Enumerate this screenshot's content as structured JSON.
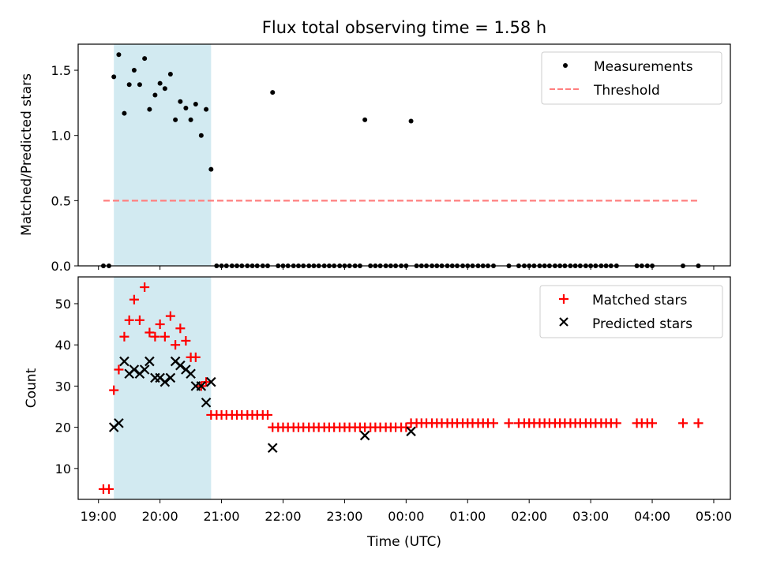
{
  "figure": {
    "title": "Flux total observing time = 1.58 h"
  },
  "colors": {
    "measurement": "#000000",
    "threshold": "#ff7f7f",
    "matched": "#ff0000",
    "predicted": "#000000",
    "highlight": "#add8e6"
  },
  "chart_data": [
    {
      "type": "scatter",
      "ylabel": "Matched/Predicted stars",
      "xlabel": "",
      "x_unit": "hours since 00:00 UTC (values >= 24 are the next day)",
      "xlim": [
        18.67,
        29.27
      ],
      "ylim": [
        0.0,
        1.7
      ],
      "yticks": [
        0.0,
        0.5,
        1.0,
        1.5
      ],
      "ytick_labels": [
        "0.0",
        "0.5",
        "1.0",
        "1.5"
      ],
      "legend_position": "upper right",
      "highlight_span": {
        "from": 19.25,
        "to": 20.83
      },
      "series": [
        {
          "name": "Measurements",
          "marker": "dot",
          "points": [
            [
              19.08,
              0.0
            ],
            [
              19.17,
              0.0
            ],
            [
              19.25,
              1.45
            ],
            [
              19.33,
              1.62
            ],
            [
              19.42,
              1.17
            ],
            [
              19.5,
              1.39
            ],
            [
              19.58,
              1.5
            ],
            [
              19.67,
              1.39
            ],
            [
              19.75,
              1.59
            ],
            [
              19.83,
              1.2
            ],
            [
              19.92,
              1.31
            ],
            [
              20.0,
              1.4
            ],
            [
              20.08,
              1.36
            ],
            [
              20.17,
              1.47
            ],
            [
              20.25,
              1.12
            ],
            [
              20.33,
              1.26
            ],
            [
              20.42,
              1.21
            ],
            [
              20.5,
              1.12
            ],
            [
              20.58,
              1.24
            ],
            [
              20.67,
              1.0
            ],
            [
              20.75,
              1.2
            ],
            [
              20.83,
              0.74
            ],
            [
              20.92,
              0.0
            ],
            [
              21.0,
              0.0
            ],
            [
              21.08,
              0.0
            ],
            [
              21.17,
              0.0
            ],
            [
              21.25,
              0.0
            ],
            [
              21.33,
              0.0
            ],
            [
              21.42,
              0.0
            ],
            [
              21.5,
              0.0
            ],
            [
              21.58,
              0.0
            ],
            [
              21.67,
              0.0
            ],
            [
              21.75,
              0.0
            ],
            [
              21.83,
              1.33
            ],
            [
              21.92,
              0.0
            ],
            [
              22.0,
              0.0
            ],
            [
              22.08,
              0.0
            ],
            [
              22.17,
              0.0
            ],
            [
              22.25,
              0.0
            ],
            [
              22.33,
              0.0
            ],
            [
              22.42,
              0.0
            ],
            [
              22.5,
              0.0
            ],
            [
              22.58,
              0.0
            ],
            [
              22.67,
              0.0
            ],
            [
              22.75,
              0.0
            ],
            [
              22.83,
              0.0
            ],
            [
              22.92,
              0.0
            ],
            [
              23.0,
              0.0
            ],
            [
              23.08,
              0.0
            ],
            [
              23.17,
              0.0
            ],
            [
              23.25,
              0.0
            ],
            [
              23.33,
              1.12
            ],
            [
              23.42,
              0.0
            ],
            [
              23.5,
              0.0
            ],
            [
              23.58,
              0.0
            ],
            [
              23.67,
              0.0
            ],
            [
              23.75,
              0.0
            ],
            [
              23.83,
              0.0
            ],
            [
              23.92,
              0.0
            ],
            [
              24.0,
              0.0
            ],
            [
              24.08,
              1.11
            ],
            [
              24.17,
              0.0
            ],
            [
              24.25,
              0.0
            ],
            [
              24.33,
              0.0
            ],
            [
              24.42,
              0.0
            ],
            [
              24.5,
              0.0
            ],
            [
              24.58,
              0.0
            ],
            [
              24.67,
              0.0
            ],
            [
              24.75,
              0.0
            ],
            [
              24.83,
              0.0
            ],
            [
              24.92,
              0.0
            ],
            [
              25.0,
              0.0
            ],
            [
              25.08,
              0.0
            ],
            [
              25.17,
              0.0
            ],
            [
              25.25,
              0.0
            ],
            [
              25.33,
              0.0
            ],
            [
              25.42,
              0.0
            ],
            [
              25.67,
              0.0
            ],
            [
              25.83,
              0.0
            ],
            [
              25.92,
              0.0
            ],
            [
              26.0,
              0.0
            ],
            [
              26.08,
              0.0
            ],
            [
              26.17,
              0.0
            ],
            [
              26.25,
              0.0
            ],
            [
              26.33,
              0.0
            ],
            [
              26.42,
              0.0
            ],
            [
              26.5,
              0.0
            ],
            [
              26.58,
              0.0
            ],
            [
              26.67,
              0.0
            ],
            [
              26.75,
              0.0
            ],
            [
              26.83,
              0.0
            ],
            [
              26.92,
              0.0
            ],
            [
              27.0,
              0.0
            ],
            [
              27.08,
              0.0
            ],
            [
              27.17,
              0.0
            ],
            [
              27.25,
              0.0
            ],
            [
              27.33,
              0.0
            ],
            [
              27.42,
              0.0
            ],
            [
              27.75,
              0.0
            ],
            [
              27.83,
              0.0
            ],
            [
              27.92,
              0.0
            ],
            [
              28.0,
              0.0
            ],
            [
              28.5,
              0.0
            ],
            [
              28.75,
              0.0
            ]
          ]
        },
        {
          "name": "Threshold",
          "style": "dashed-line",
          "x": [
            19.08,
            28.75
          ],
          "y": [
            0.5,
            0.5
          ]
        }
      ]
    },
    {
      "type": "scatter",
      "ylabel": "Count",
      "xlabel": "Time (UTC)",
      "x_unit": "hours since 00:00 UTC (values >= 24 are the next day)",
      "xlim": [
        18.67,
        29.27
      ],
      "ylim": [
        2.5,
        56.5
      ],
      "yticks": [
        10,
        20,
        30,
        40,
        50
      ],
      "ytick_labels": [
        "10",
        "20",
        "30",
        "40",
        "50"
      ],
      "xticks": [
        19,
        20,
        21,
        22,
        23,
        24,
        25,
        26,
        27,
        28,
        29
      ],
      "xtick_labels": [
        "19:00",
        "20:00",
        "21:00",
        "22:00",
        "23:00",
        "00:00",
        "01:00",
        "02:00",
        "03:00",
        "04:00",
        "05:00"
      ],
      "legend_position": "upper right",
      "highlight_span": {
        "from": 19.25,
        "to": 20.83
      },
      "series": [
        {
          "name": "Matched stars",
          "marker": "plus",
          "points": [
            [
              19.08,
              5
            ],
            [
              19.17,
              5
            ],
            [
              19.25,
              29
            ],
            [
              19.33,
              34
            ],
            [
              19.42,
              42
            ],
            [
              19.5,
              46
            ],
            [
              19.58,
              51
            ],
            [
              19.67,
              46
            ],
            [
              19.75,
              54
            ],
            [
              19.83,
              43
            ],
            [
              19.92,
              42
            ],
            [
              20.0,
              45
            ],
            [
              20.08,
              42
            ],
            [
              20.17,
              47
            ],
            [
              20.25,
              40
            ],
            [
              20.33,
              44
            ],
            [
              20.42,
              41
            ],
            [
              20.5,
              37
            ],
            [
              20.58,
              37
            ],
            [
              20.67,
              30
            ],
            [
              20.75,
              31
            ],
            [
              20.83,
              23
            ],
            [
              20.92,
              23
            ],
            [
              21.0,
              23
            ],
            [
              21.08,
              23
            ],
            [
              21.17,
              23
            ],
            [
              21.25,
              23
            ],
            [
              21.33,
              23
            ],
            [
              21.42,
              23
            ],
            [
              21.5,
              23
            ],
            [
              21.58,
              23
            ],
            [
              21.67,
              23
            ],
            [
              21.75,
              23
            ],
            [
              21.83,
              20
            ],
            [
              21.92,
              20
            ],
            [
              22.0,
              20
            ],
            [
              22.08,
              20
            ],
            [
              22.17,
              20
            ],
            [
              22.25,
              20
            ],
            [
              22.33,
              20
            ],
            [
              22.42,
              20
            ],
            [
              22.5,
              20
            ],
            [
              22.58,
              20
            ],
            [
              22.67,
              20
            ],
            [
              22.75,
              20
            ],
            [
              22.83,
              20
            ],
            [
              22.92,
              20
            ],
            [
              23.0,
              20
            ],
            [
              23.08,
              20
            ],
            [
              23.17,
              20
            ],
            [
              23.25,
              20
            ],
            [
              23.33,
              20
            ],
            [
              23.42,
              20
            ],
            [
              23.5,
              20
            ],
            [
              23.58,
              20
            ],
            [
              23.67,
              20
            ],
            [
              23.75,
              20
            ],
            [
              23.83,
              20
            ],
            [
              23.92,
              20
            ],
            [
              24.0,
              20
            ],
            [
              24.08,
              21
            ],
            [
              24.17,
              21
            ],
            [
              24.25,
              21
            ],
            [
              24.33,
              21
            ],
            [
              24.42,
              21
            ],
            [
              24.5,
              21
            ],
            [
              24.58,
              21
            ],
            [
              24.67,
              21
            ],
            [
              24.75,
              21
            ],
            [
              24.83,
              21
            ],
            [
              24.92,
              21
            ],
            [
              25.0,
              21
            ],
            [
              25.08,
              21
            ],
            [
              25.17,
              21
            ],
            [
              25.25,
              21
            ],
            [
              25.33,
              21
            ],
            [
              25.42,
              21
            ],
            [
              25.67,
              21
            ],
            [
              25.83,
              21
            ],
            [
              25.92,
              21
            ],
            [
              26.0,
              21
            ],
            [
              26.08,
              21
            ],
            [
              26.17,
              21
            ],
            [
              26.25,
              21
            ],
            [
              26.33,
              21
            ],
            [
              26.42,
              21
            ],
            [
              26.5,
              21
            ],
            [
              26.58,
              21
            ],
            [
              26.67,
              21
            ],
            [
              26.75,
              21
            ],
            [
              26.83,
              21
            ],
            [
              26.92,
              21
            ],
            [
              27.0,
              21
            ],
            [
              27.08,
              21
            ],
            [
              27.17,
              21
            ],
            [
              27.25,
              21
            ],
            [
              27.33,
              21
            ],
            [
              27.42,
              21
            ],
            [
              27.75,
              21
            ],
            [
              27.83,
              21
            ],
            [
              27.92,
              21
            ],
            [
              28.0,
              21
            ],
            [
              28.5,
              21
            ],
            [
              28.75,
              21
            ]
          ]
        },
        {
          "name": "Predicted stars",
          "marker": "x",
          "points": [
            [
              19.25,
              20
            ],
            [
              19.33,
              21
            ],
            [
              19.42,
              36
            ],
            [
              19.5,
              33
            ],
            [
              19.58,
              34
            ],
            [
              19.67,
              33
            ],
            [
              19.75,
              34
            ],
            [
              19.83,
              36
            ],
            [
              19.92,
              32
            ],
            [
              20.0,
              32
            ],
            [
              20.08,
              31
            ],
            [
              20.17,
              32
            ],
            [
              20.25,
              36
            ],
            [
              20.33,
              35
            ],
            [
              20.42,
              34
            ],
            [
              20.5,
              33
            ],
            [
              20.58,
              30
            ],
            [
              20.67,
              30
            ],
            [
              20.75,
              26
            ],
            [
              20.83,
              31
            ],
            [
              21.83,
              15
            ],
            [
              23.33,
              18
            ],
            [
              24.08,
              19
            ]
          ]
        }
      ]
    }
  ]
}
